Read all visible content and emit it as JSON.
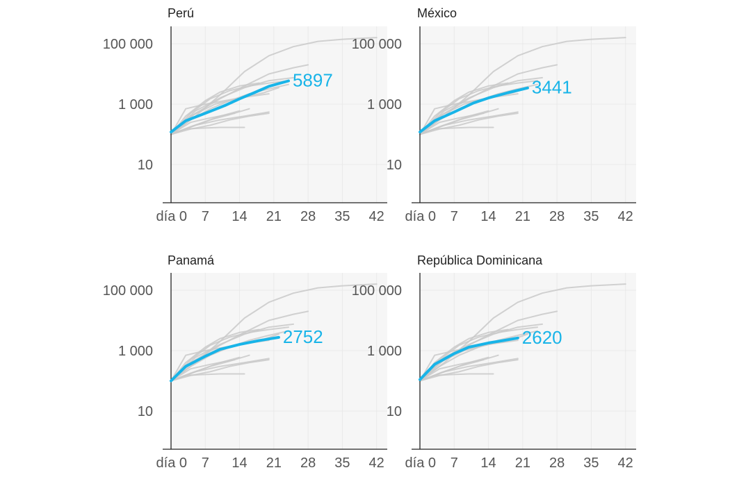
{
  "colors": {
    "highlight": "#18b4e8",
    "background_lines": "#c9c9c9",
    "panel_bg": "#f6f6f6",
    "grid": "#e9e9e9",
    "axis": "#222222",
    "text": "#555555"
  },
  "chart_data": [
    {
      "type": "line",
      "title": "Perú",
      "y_scale": "log",
      "ylim": [
        1,
        1000000
      ],
      "xlim": [
        0,
        44
      ],
      "y_ticks": [
        10,
        1000,
        100000
      ],
      "y_tick_labels": [
        "10",
        "1 000",
        "100 000"
      ],
      "x_ticks": [
        0,
        7,
        14,
        21,
        28,
        35,
        42
      ],
      "x_tick_labels": [
        "día 0",
        "7",
        "14",
        "21",
        "28",
        "35",
        "42"
      ],
      "highlight": {
        "x": [
          0,
          3,
          7,
          11,
          14,
          17,
          20,
          24
        ],
        "y": [
          120,
          280,
          500,
          900,
          1500,
          2400,
          3900,
          5897
        ]
      },
      "end_label": "5897"
    },
    {
      "type": "line",
      "title": "México",
      "y_scale": "log",
      "ylim": [
        1,
        1000000
      ],
      "xlim": [
        0,
        44
      ],
      "y_ticks": [
        10,
        1000,
        100000
      ],
      "y_tick_labels": [
        "10",
        "1 000",
        "100 000"
      ],
      "x_ticks": [
        0,
        7,
        14,
        21,
        28,
        35,
        42
      ],
      "x_tick_labels": [
        "día 0",
        "7",
        "14",
        "21",
        "28",
        "35",
        "42"
      ],
      "highlight": {
        "x": [
          0,
          3,
          7,
          11,
          14,
          18,
          22
        ],
        "y": [
          120,
          280,
          550,
          1100,
          1600,
          2400,
          3441
        ]
      },
      "end_label": "3441"
    },
    {
      "type": "line",
      "title": "Panamá",
      "y_scale": "log",
      "ylim": [
        1,
        1000000
      ],
      "xlim": [
        0,
        44
      ],
      "y_ticks": [
        10,
        1000,
        100000
      ],
      "y_tick_labels": [
        "10",
        "1 000",
        "100 000"
      ],
      "x_ticks": [
        0,
        7,
        14,
        21,
        28,
        35,
        42
      ],
      "x_tick_labels": [
        "día 0",
        "7",
        "14",
        "21",
        "28",
        "35",
        "42"
      ],
      "highlight": {
        "x": [
          0,
          3,
          7,
          10,
          14,
          18,
          22
        ],
        "y": [
          100,
          300,
          650,
          1100,
          1600,
          2150,
          2752
        ]
      },
      "end_label": "2752"
    },
    {
      "type": "line",
      "title": "República Dominicana",
      "y_scale": "log",
      "ylim": [
        1,
        1000000
      ],
      "xlim": [
        0,
        44
      ],
      "y_ticks": [
        10,
        1000,
        100000
      ],
      "y_tick_labels": [
        "10",
        "1 000",
        "100 000"
      ],
      "x_ticks": [
        0,
        7,
        14,
        21,
        28,
        35,
        42
      ],
      "x_tick_labels": [
        "día 0",
        "7",
        "14",
        "21",
        "28",
        "35",
        "42"
      ],
      "highlight": {
        "x": [
          0,
          3,
          7,
          10,
          14,
          17,
          20
        ],
        "y": [
          110,
          350,
          800,
          1300,
          1800,
          2150,
          2620
        ]
      },
      "end_label": "2620"
    }
  ],
  "background_series": [
    {
      "x": [
        0,
        5,
        10,
        15,
        20,
        25,
        30,
        35,
        42
      ],
      "y": [
        100,
        400,
        2000,
        12000,
        40000,
        80000,
        120000,
        140000,
        160000
      ]
    },
    {
      "x": [
        0,
        5,
        10,
        15,
        20,
        25,
        28
      ],
      "y": [
        100,
        500,
        1500,
        4000,
        10000,
        16000,
        20000
      ]
    },
    {
      "x": [
        0,
        5,
        10,
        15,
        20,
        25
      ],
      "y": [
        100,
        600,
        1600,
        3500,
        6000,
        7500
      ]
    },
    {
      "x": [
        0,
        4,
        8,
        12,
        16,
        20,
        24
      ],
      "y": [
        100,
        500,
        1500,
        2800,
        4000,
        5000,
        6000
      ]
    },
    {
      "x": [
        0,
        4,
        8,
        12,
        16,
        20,
        24
      ],
      "y": [
        100,
        300,
        700,
        1300,
        2200,
        3200,
        4500
      ]
    },
    {
      "x": [
        0,
        3,
        7,
        10,
        14,
        18
      ],
      "y": [
        100,
        400,
        1300,
        2500,
        4000,
        5000
      ]
    },
    {
      "x": [
        0,
        4,
        8,
        12,
        16,
        20
      ],
      "y": [
        100,
        150,
        200,
        300,
        400,
        500
      ]
    },
    {
      "x": [
        0,
        5,
        10,
        15,
        20
      ],
      "y": [
        100,
        200,
        300,
        400,
        550
      ]
    },
    {
      "x": [
        0,
        3,
        6,
        10,
        15
      ],
      "y": [
        100,
        150,
        160,
        170,
        170
      ]
    },
    {
      "x": [
        0,
        4,
        8,
        12,
        16
      ],
      "y": [
        100,
        180,
        300,
        450,
        700
      ]
    },
    {
      "x": [
        0,
        4,
        8,
        13
      ],
      "y": [
        100,
        250,
        350,
        500
      ]
    },
    {
      "x": [
        0,
        5,
        10,
        14
      ],
      "y": [
        100,
        200,
        400,
        600
      ]
    },
    {
      "x": [
        0,
        4,
        9,
        14,
        19,
        22
      ],
      "y": [
        100,
        400,
        1000,
        1600,
        2400,
        3500
      ]
    },
    {
      "x": [
        0,
        3,
        7,
        11,
        15,
        20
      ],
      "y": [
        100,
        700,
        1000,
        1300,
        1700,
        2200
      ]
    }
  ]
}
